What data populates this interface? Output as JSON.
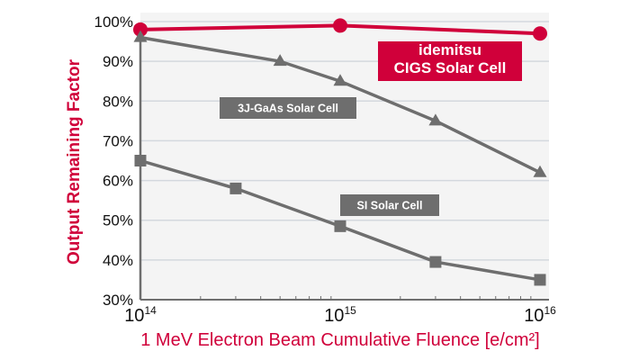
{
  "chart_data": {
    "type": "line",
    "xlabel": "1 MeV Electron Beam Cumulative Fluence [e/cm²]",
    "ylabel": "Output Remaining Factor",
    "x_scale": "log",
    "xlim": [
      100000000000000.0,
      1e+16
    ],
    "ylim": [
      30,
      100
    ],
    "grid": true,
    "x_ticks": [
      {
        "base": "10",
        "exp": "14"
      },
      {
        "base": "10",
        "exp": "15"
      },
      {
        "base": "10",
        "exp": "16"
      }
    ],
    "y_ticks": [
      "30%",
      "40%",
      "50%",
      "60%",
      "70%",
      "80%",
      "90%",
      "100%"
    ],
    "colors": {
      "accent": "#d0003a",
      "series_gray": "#6e6e6e",
      "plot_bg": "#f4f4f4",
      "grid": "#d4d8de"
    },
    "series": [
      {
        "name": "idemitsu CIGS Solar Cell",
        "label_lines": [
          "idemitsu",
          "CIGS Solar Cell"
        ],
        "marker": "circle",
        "color": "#d0003a",
        "x": [
          100000000000000.0,
          1000000000000000.0,
          1e+16
        ],
        "y": [
          98,
          99,
          97
        ]
      },
      {
        "name": "3J-GaAs Solar Cell",
        "label_lines": [
          "3J-GaAs Solar Cell"
        ],
        "marker": "triangle",
        "color": "#6e6e6e",
        "x": [
          100000000000000.0,
          500000000000000.0,
          1000000000000000.0,
          3000000000000000.0,
          1e+16
        ],
        "y": [
          96,
          90,
          85,
          75,
          62
        ]
      },
      {
        "name": "SI Solar Cell",
        "label_lines": [
          "SI Solar Cell"
        ],
        "marker": "square",
        "color": "#6e6e6e",
        "x": [
          100000000000000.0,
          300000000000000.0,
          1000000000000000.0,
          3000000000000000.0,
          1e+16
        ],
        "y": [
          65,
          58,
          48.5,
          39.5,
          35
        ]
      }
    ]
  }
}
